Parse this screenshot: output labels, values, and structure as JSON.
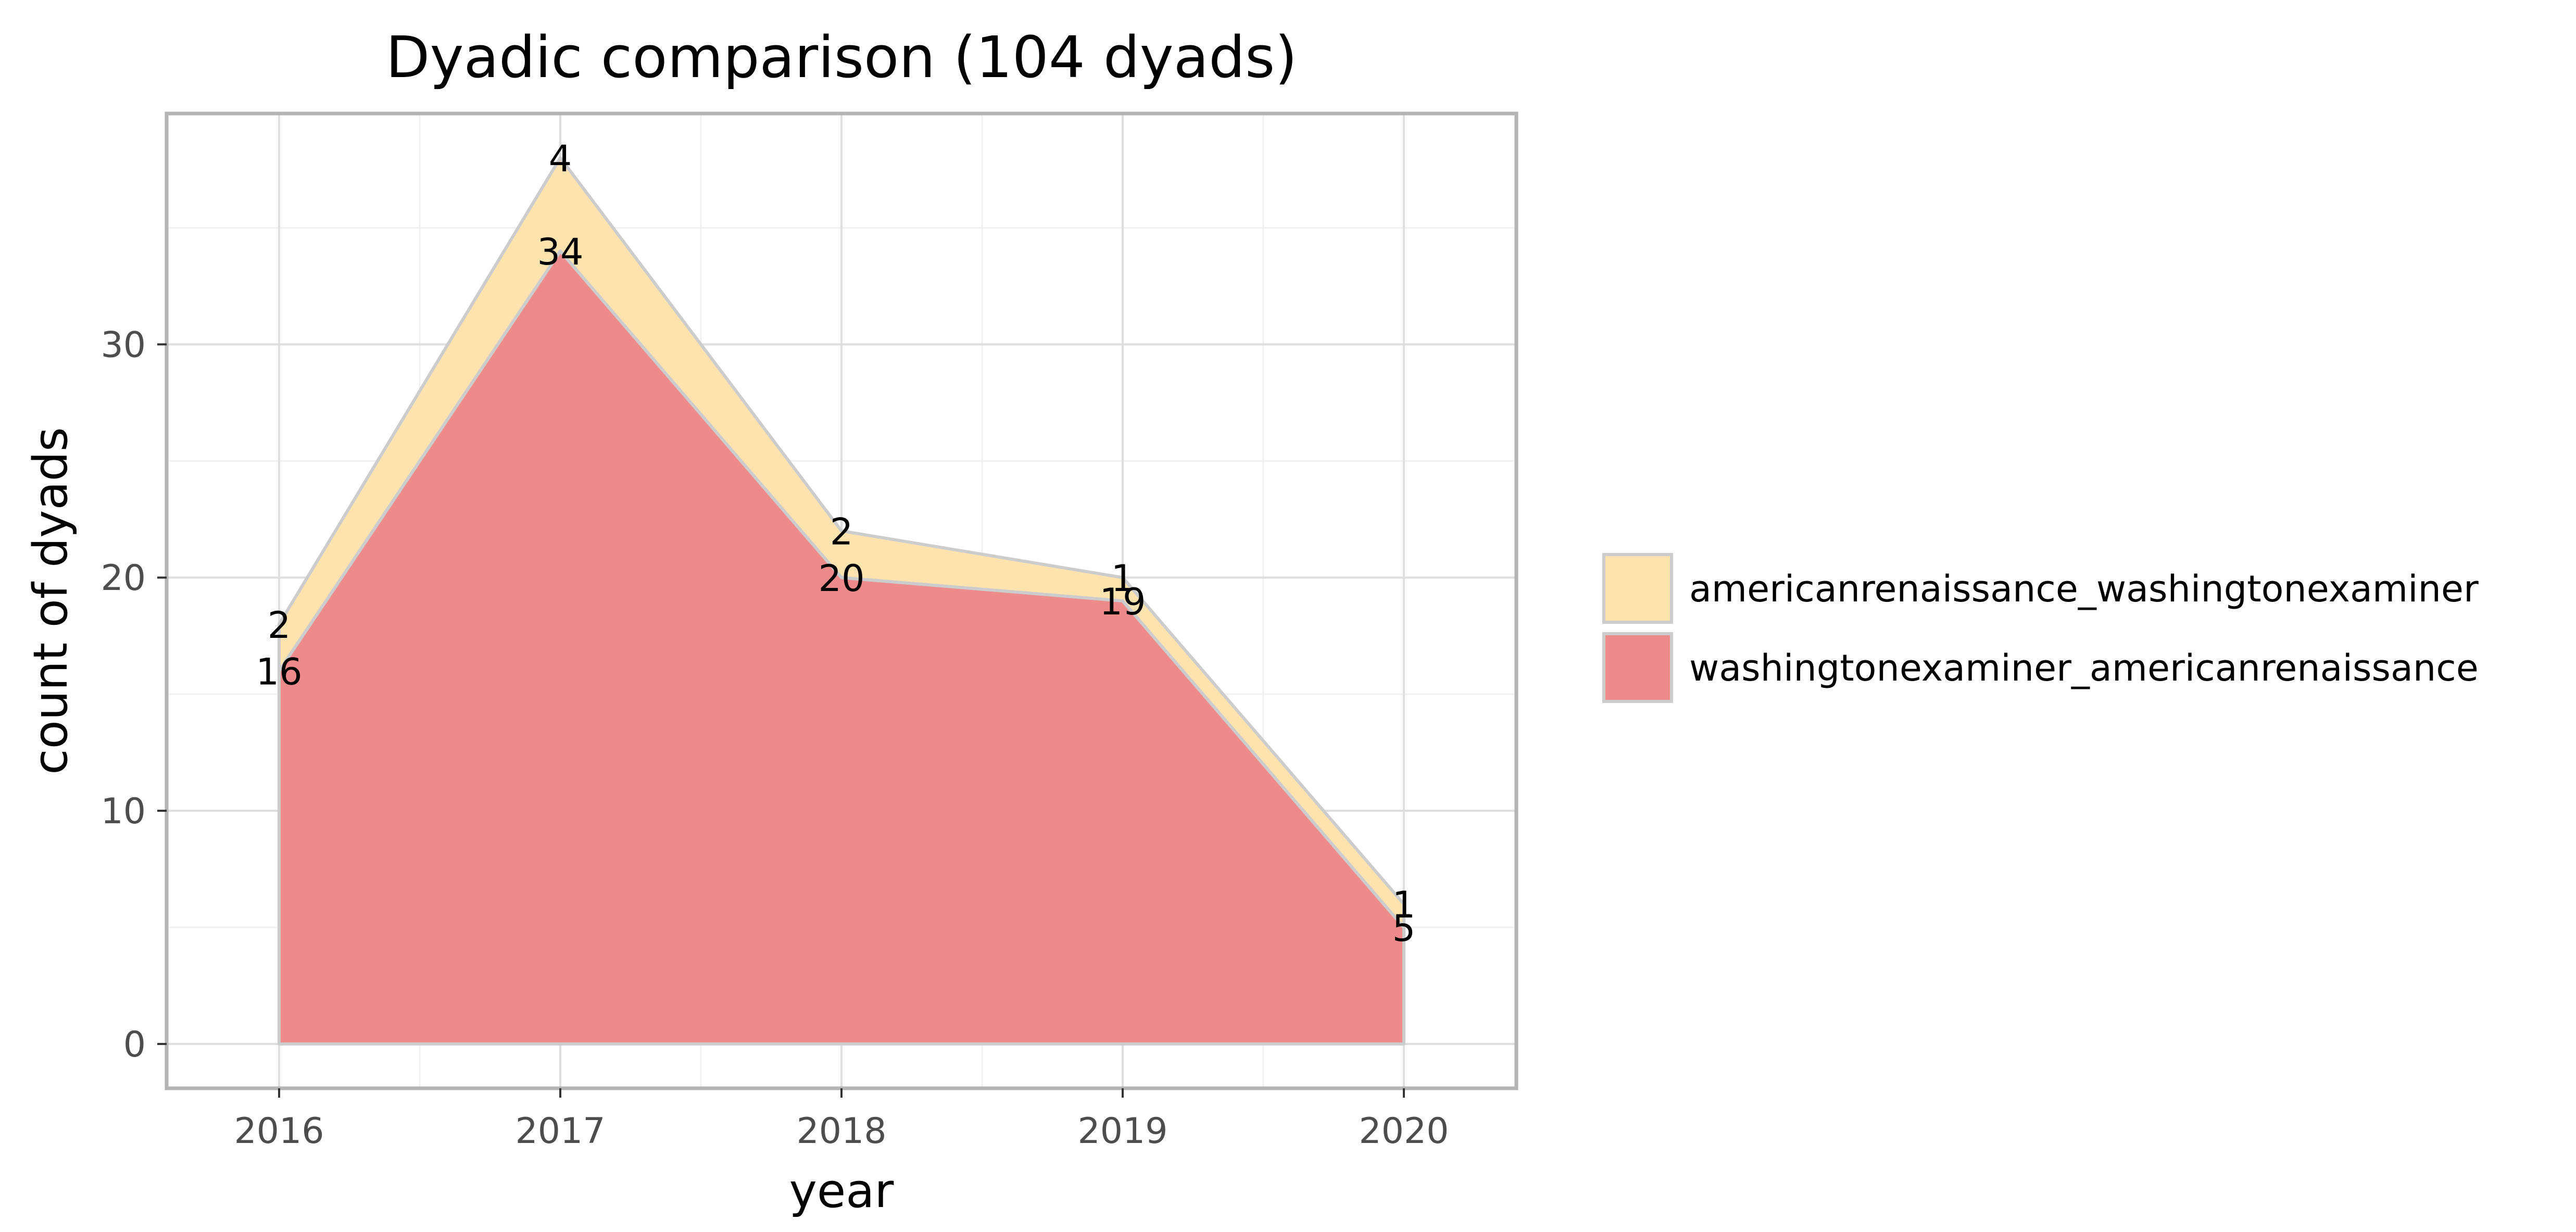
{
  "chart_data": {
    "type": "area",
    "stacked": true,
    "title": "Dyadic comparison (104 dyads)",
    "xlabel": "year",
    "ylabel": "count of dyads",
    "x": [
      2016,
      2017,
      2018,
      2019,
      2020
    ],
    "x_ticks": [
      "2016",
      "2017",
      "2018",
      "2019",
      "2020"
    ],
    "xlim": [
      2015.6,
      2020.4
    ],
    "y_ticks": [
      "0",
      "10",
      "20",
      "30"
    ],
    "y_tick_values": [
      0,
      10,
      20,
      30
    ],
    "ylim": [
      -1.9,
      39.9
    ],
    "grid": true,
    "legend_position": "right",
    "series": [
      {
        "name": "washingtonexaminer_americanrenaissance",
        "values": [
          16,
          34,
          20,
          19,
          5
        ],
        "labels": [
          "16",
          "34",
          "20",
          "19",
          "5"
        ],
        "color": "#ef8a8b"
      },
      {
        "name": "americanrenaissance_washingtonexaminer",
        "values": [
          2,
          4,
          2,
          1,
          1
        ],
        "labels": [
          "2",
          "4",
          "2",
          "1",
          "1"
        ],
        "color": "#fee3ae"
      }
    ],
    "legend_order": [
      1,
      0
    ],
    "colors": {
      "panel_border": "#b3b3b3",
      "grid_major": "#dedede",
      "grid_minor": "#f0f0f0",
      "area_outline": "#cccccc",
      "tick_text": "#4d4d4d"
    }
  }
}
